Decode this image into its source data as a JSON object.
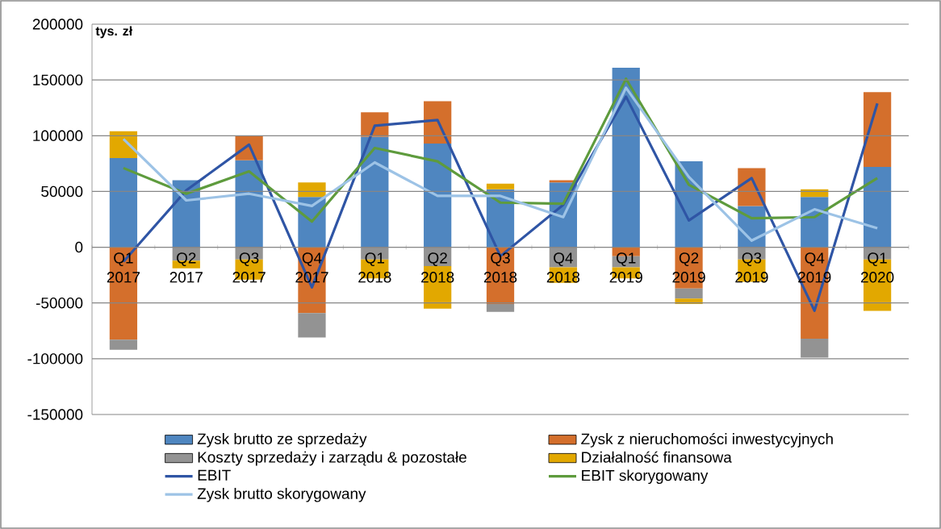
{
  "chart_data": {
    "type": "bar",
    "stacked": true,
    "ylabel": "tys. zł",
    "categories": [
      "Q1 2017",
      "Q2 2017",
      "Q3 2017",
      "Q4 2017",
      "Q1 2018",
      "Q2 2018",
      "Q3 2018",
      "Q4 2018",
      "Q1 2019",
      "Q2 2019",
      "Q3 2019",
      "Q4 2019",
      "Q1 2020"
    ],
    "series": [
      {
        "name": "Zysk brutto ze sprzedaży",
        "color": "#4f86c0",
        "values": [
          80000,
          60000,
          78000,
          45000,
          99000,
          93000,
          52000,
          58000,
          161000,
          77000,
          37000,
          45000,
          72000
        ]
      },
      {
        "name": "Zysk z nieruchomości inwestycyjnych",
        "color": "#d46f2c",
        "values": [
          -83000,
          0,
          22000,
          -59000,
          22000,
          38000,
          -51000,
          2000,
          -8000,
          -37000,
          34000,
          -82000,
          67000
        ]
      },
      {
        "name": "Koszty sprzedaży i zarządu & pozostałe",
        "color": "#939393",
        "values": [
          -9000,
          -12000,
          -11000,
          -22000,
          -11000,
          -17000,
          -7000,
          -18000,
          -10000,
          -9000,
          -11000,
          -17000,
          -11000
        ]
      },
      {
        "name": "Działalność finansowa",
        "color": "#e2a800",
        "values": [
          24000,
          -7000,
          -18000,
          13000,
          -17000,
          -38000,
          5000,
          -14000,
          -10000,
          -5000,
          -20000,
          7000,
          -46000
        ]
      },
      {
        "name": "EBIT",
        "type": "line",
        "color": "#2f55a5",
        "values": [
          -13000,
          51000,
          92000,
          -36000,
          109000,
          114000,
          -8000,
          38000,
          135000,
          24000,
          62000,
          -57000,
          129000
        ]
      },
      {
        "name": "EBIT skorygowany",
        "type": "line",
        "color": "#5e9b3d",
        "values": [
          71000,
          48000,
          68000,
          23000,
          89000,
          77000,
          40000,
          39000,
          151000,
          56000,
          26000,
          27000,
          62000
        ]
      },
      {
        "name": "Zysk brutto skorygowany",
        "type": "line",
        "color": "#9dc3e6",
        "values": [
          97000,
          42000,
          48000,
          37000,
          76000,
          46000,
          46000,
          27000,
          143000,
          63000,
          6000,
          34000,
          17000
        ]
      }
    ],
    "ylim": [
      -150000,
      200000
    ],
    "yticks": [
      -150000,
      -100000,
      -50000,
      0,
      50000,
      100000,
      150000,
      200000
    ],
    "grid": "y",
    "legend": "bottom",
    "marker": "none",
    "line_style": "solid"
  }
}
